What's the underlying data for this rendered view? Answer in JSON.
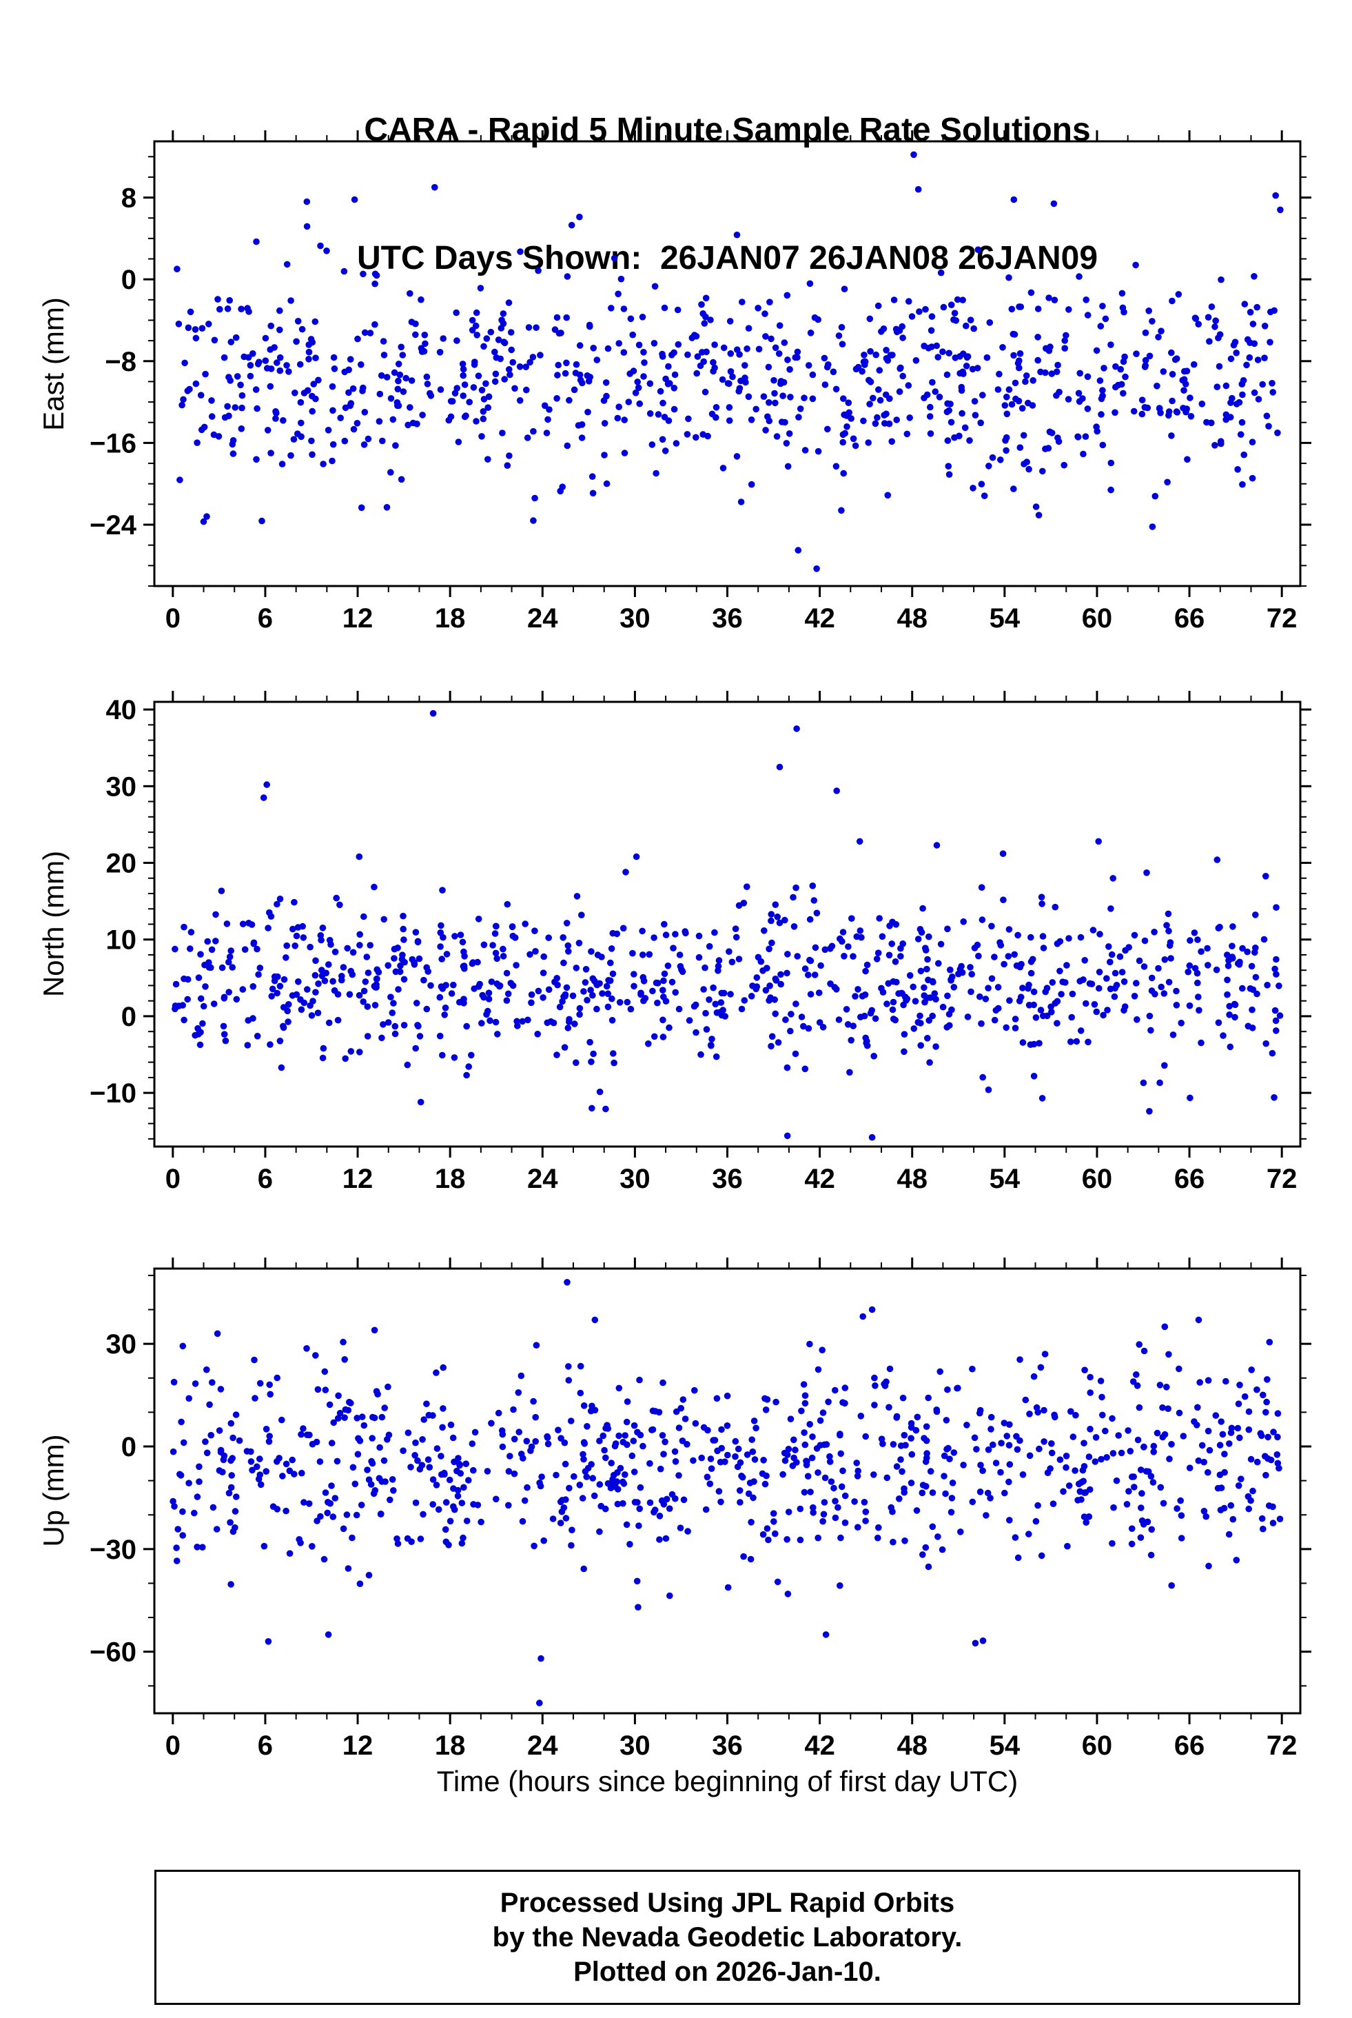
{
  "title": {
    "line1": "CARA - Rapid 5 Minute Sample Rate Solutions",
    "line2": "UTC Days Shown:  26JAN07 26JAN08 26JAN09"
  },
  "xlabel": "Time (hours since beginning of first day UTC)",
  "footer": {
    "line1": "Processed Using JPL Rapid Orbits",
    "line2": "by the Nevada Geodetic Laboratory.",
    "line3": "Plotted on 2026-Jan-10."
  },
  "marker_color": "#0000dd",
  "axis_color": "#000000",
  "chart_data": [
    {
      "type": "scatter",
      "name": "east",
      "ylabel": "East (mm)",
      "xlim": [
        -1.2,
        73.2
      ],
      "ylim": [
        -30,
        13.5
      ],
      "xticks": [
        0,
        6,
        12,
        18,
        24,
        30,
        36,
        42,
        48,
        54,
        60,
        66,
        72
      ],
      "x_minor_step": 2,
      "yticks": [
        8,
        0,
        -8,
        -16,
        -24
      ],
      "y_minor_step": 2,
      "n_points": 850,
      "x_range": [
        0,
        72
      ],
      "mean": -9.5,
      "sd": 5.2,
      "clip": [
        -25,
        6
      ],
      "seed": 101,
      "outliers": [
        [
          48.1,
          12.2
        ],
        [
          48.4,
          8.8
        ],
        [
          17.0,
          9.0
        ],
        [
          11.8,
          7.8
        ],
        [
          54.6,
          7.8
        ],
        [
          57.2,
          7.4
        ],
        [
          71.6,
          8.2
        ],
        [
          71.9,
          6.8
        ],
        [
          8.7,
          7.6
        ],
        [
          26.4,
          6.1
        ],
        [
          25.9,
          5.3
        ],
        [
          40.6,
          -26.5
        ],
        [
          41.8,
          -28.3
        ],
        [
          23.4,
          -23.6
        ],
        [
          23.5,
          -21.4
        ],
        [
          2.0,
          -23.7
        ],
        [
          2.2,
          -23.2
        ],
        [
          63.6,
          -24.2
        ],
        [
          43.4,
          -22.6
        ],
        [
          13.9,
          -22.3
        ],
        [
          60.9,
          -20.6
        ]
      ]
    },
    {
      "type": "scatter",
      "name": "north",
      "ylabel": "North (mm)",
      "xlim": [
        -1.2,
        73.2
      ],
      "ylim": [
        -17,
        41
      ],
      "xticks": [
        0,
        6,
        12,
        18,
        24,
        30,
        36,
        42,
        48,
        54,
        60,
        66,
        72
      ],
      "x_minor_step": 2,
      "yticks": [
        40,
        30,
        20,
        10,
        0,
        -10
      ],
      "y_minor_step": 2,
      "n_points": 850,
      "x_range": [
        0,
        72
      ],
      "mean": 4.5,
      "sd": 5.5,
      "clip": [
        -13,
        19
      ],
      "seed": 202,
      "outliers": [
        [
          16.9,
          39.5
        ],
        [
          40.5,
          37.5
        ],
        [
          6.1,
          30.2
        ],
        [
          5.9,
          28.5
        ],
        [
          39.4,
          32.5
        ],
        [
          43.1,
          29.4
        ],
        [
          44.6,
          22.8
        ],
        [
          49.6,
          22.3
        ],
        [
          60.1,
          22.8
        ],
        [
          30.1,
          20.8
        ],
        [
          12.1,
          20.8
        ],
        [
          29.4,
          18.8
        ],
        [
          53.9,
          21.2
        ],
        [
          67.8,
          20.4
        ],
        [
          39.9,
          -15.6
        ],
        [
          45.4,
          -15.8
        ],
        [
          28.1,
          -12.1
        ],
        [
          27.2,
          -12.0
        ],
        [
          16.1,
          -11.2
        ],
        [
          63.4,
          -12.4
        ],
        [
          71.5,
          -10.6
        ]
      ]
    },
    {
      "type": "scatter",
      "name": "up",
      "ylabel": "Up (mm)",
      "xlim": [
        -1.2,
        73.2
      ],
      "ylim": [
        -78,
        52
      ],
      "xticks": [
        0,
        6,
        12,
        18,
        24,
        30,
        36,
        42,
        48,
        54,
        60,
        66,
        72
      ],
      "x_minor_step": 2,
      "yticks": [
        30,
        0,
        -30,
        -60
      ],
      "y_minor_step": 10,
      "n_points": 850,
      "x_range": [
        0,
        72
      ],
      "mean": -5,
      "sd": 15,
      "clip": [
        -45,
        31
      ],
      "seed": 303,
      "outliers": [
        [
          25.6,
          48.0
        ],
        [
          23.8,
          -75.0
        ],
        [
          27.4,
          37.0
        ],
        [
          45.4,
          40.0
        ],
        [
          44.8,
          38.0
        ],
        [
          13.1,
          34.0
        ],
        [
          64.4,
          35.0
        ],
        [
          66.6,
          37.0
        ],
        [
          6.2,
          -57.0
        ],
        [
          10.1,
          -55.0
        ],
        [
          23.9,
          -62.0
        ],
        [
          42.4,
          -55.0
        ],
        [
          52.1,
          -57.5
        ],
        [
          52.6,
          -56.8
        ],
        [
          30.2,
          -47.0
        ],
        [
          2.9,
          33.0
        ],
        [
          71.2,
          30.5
        ]
      ]
    }
  ]
}
